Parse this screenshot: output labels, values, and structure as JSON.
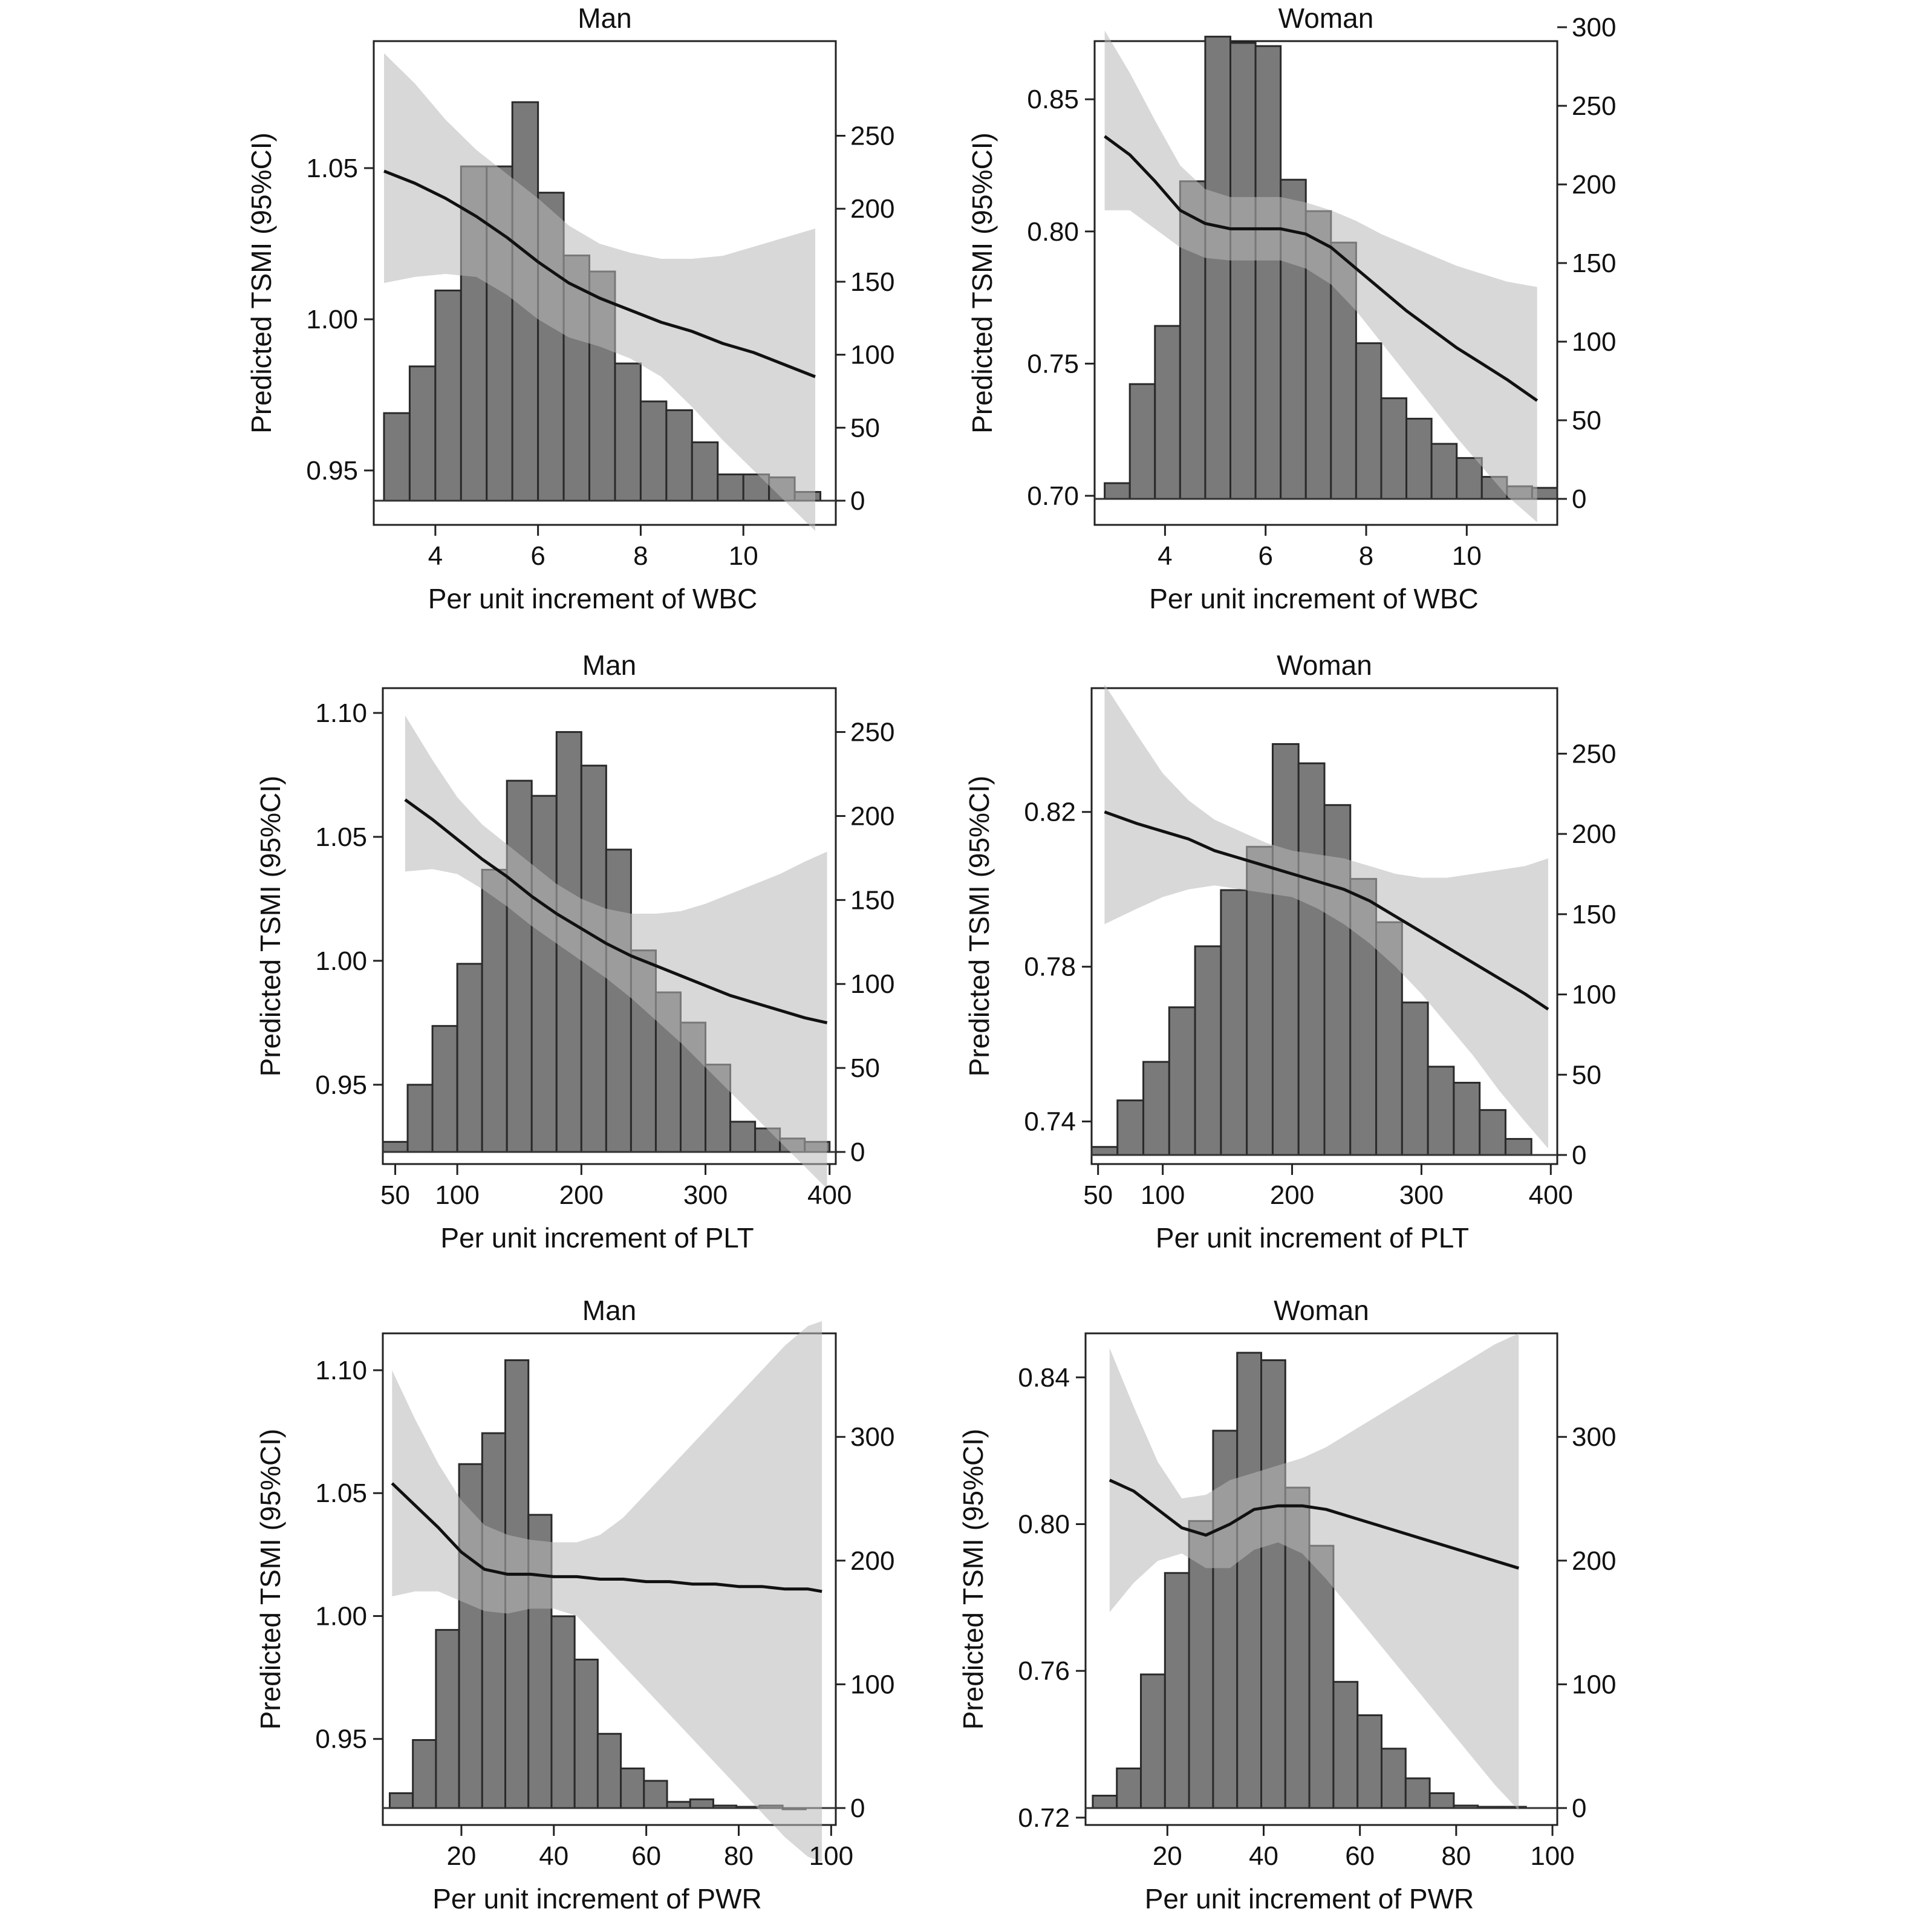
{
  "chart_data": [
    {
      "type": "line",
      "title": "Man",
      "xlabel": "Per unit increment of WBC",
      "ylabel": "Predicted TSMI (95%CI)",
      "xlim": [
        2.8,
        11.8
      ],
      "ylim": [
        0.932,
        1.092
      ],
      "y2lim": [
        0,
        285
      ],
      "xticks": [
        4,
        6,
        8,
        10
      ],
      "yticks": [
        0.95,
        1.0,
        1.05
      ],
      "y2ticks": [
        0,
        50,
        100,
        150,
        200,
        250
      ],
      "line": {
        "x": [
          3.0,
          3.6,
          4.2,
          4.8,
          5.4,
          6.0,
          6.6,
          7.2,
          7.8,
          8.4,
          9.0,
          9.6,
          10.2,
          10.8,
          11.4
        ],
        "y": [
          1.049,
          1.045,
          1.04,
          1.034,
          1.027,
          1.019,
          1.012,
          1.007,
          1.003,
          0.999,
          0.996,
          0.992,
          0.989,
          0.985,
          0.981
        ]
      },
      "ci_upper": [
        1.088,
        1.078,
        1.066,
        1.056,
        1.048,
        1.04,
        1.031,
        1.025,
        1.022,
        1.02,
        1.02,
        1.021,
        1.024,
        1.027,
        1.03
      ],
      "ci_lower": [
        1.012,
        1.014,
        1.015,
        1.014,
        1.008,
        1.0,
        0.994,
        0.991,
        0.987,
        0.981,
        0.971,
        0.96,
        0.95,
        0.94,
        0.93
      ],
      "histogram": {
        "bin_start": 3.0,
        "bin_width": 0.5,
        "counts": [
          60,
          92,
          144,
          229,
          229,
          273,
          211,
          168,
          157,
          94,
          68,
          62,
          40,
          18,
          18,
          16,
          6
        ]
      }
    },
    {
      "type": "line",
      "title": "Woman",
      "xlabel": "Per unit increment of WBC",
      "ylabel": "Predicted TSMI (95%CI)",
      "xlim": [
        2.6,
        11.8
      ],
      "ylim": [
        0.689,
        0.872
      ],
      "y2lim": [
        0,
        300
      ],
      "xticks": [
        4,
        6,
        8,
        10
      ],
      "yticks": [
        0.7,
        0.75,
        0.8,
        0.85
      ],
      "y2ticks": [
        0,
        50,
        100,
        150,
        200,
        250,
        300
      ],
      "line": {
        "x": [
          2.8,
          3.3,
          3.8,
          4.3,
          4.8,
          5.3,
          5.8,
          6.3,
          6.8,
          7.3,
          7.8,
          8.3,
          8.8,
          9.3,
          9.8,
          10.3,
          10.8,
          11.4
        ],
        "y": [
          0.836,
          0.829,
          0.819,
          0.808,
          0.803,
          0.801,
          0.801,
          0.801,
          0.799,
          0.794,
          0.786,
          0.778,
          0.77,
          0.763,
          0.756,
          0.75,
          0.744,
          0.736
        ]
      },
      "ci_upper": [
        0.876,
        0.86,
        0.842,
        0.825,
        0.816,
        0.813,
        0.813,
        0.813,
        0.811,
        0.808,
        0.804,
        0.799,
        0.795,
        0.791,
        0.787,
        0.784,
        0.781,
        0.779
      ],
      "ci_lower": [
        0.808,
        0.808,
        0.801,
        0.794,
        0.79,
        0.789,
        0.789,
        0.789,
        0.786,
        0.78,
        0.77,
        0.758,
        0.746,
        0.734,
        0.722,
        0.711,
        0.7,
        0.69
      ],
      "histogram": {
        "bin_start": 2.8,
        "bin_width": 0.5,
        "counts": [
          10,
          73,
          110,
          202,
          294,
          290,
          288,
          203,
          183,
          163,
          99,
          64,
          51,
          35,
          26,
          14,
          8,
          7
        ]
      }
    },
    {
      "type": "line",
      "title": "Man",
      "xlabel": "Per unit increment of PLT",
      "ylabel": "Predicted TSMI (95%CI)",
      "xlim": [
        40,
        405
      ],
      "ylim": [
        0.918,
        1.11
      ],
      "y2lim": [
        0,
        270
      ],
      "xticks": [
        50,
        100,
        200,
        300,
        400
      ],
      "yticks": [
        0.95,
        1.0,
        1.05,
        1.1
      ],
      "y2ticks": [
        0,
        50,
        100,
        150,
        200,
        250
      ],
      "line": {
        "x": [
          58,
          80,
          100,
          120,
          140,
          160,
          180,
          200,
          220,
          240,
          260,
          280,
          300,
          320,
          340,
          360,
          380,
          398
        ],
        "y": [
          1.065,
          1.057,
          1.049,
          1.041,
          1.034,
          1.026,
          1.019,
          1.013,
          1.007,
          1.002,
          0.998,
          0.994,
          0.99,
          0.986,
          0.983,
          0.98,
          0.977,
          0.975
        ]
      },
      "ci_upper": [
        1.099,
        1.081,
        1.066,
        1.055,
        1.047,
        1.039,
        1.031,
        1.025,
        1.021,
        1.019,
        1.019,
        1.02,
        1.023,
        1.027,
        1.031,
        1.035,
        1.04,
        1.044
      ],
      "ci_lower": [
        1.036,
        1.037,
        1.035,
        1.029,
        1.022,
        1.014,
        1.007,
        1.0,
        0.993,
        0.985,
        0.976,
        0.967,
        0.957,
        0.947,
        0.937,
        0.927,
        0.917,
        0.908
      ],
      "histogram": {
        "bin_start": 40,
        "bin_width": 20,
        "counts": [
          6,
          40,
          75,
          112,
          168,
          221,
          212,
          250,
          230,
          180,
          120,
          95,
          77,
          52,
          18,
          14,
          8,
          6
        ]
      }
    },
    {
      "type": "line",
      "title": "Woman",
      "xlabel": "Per unit increment of PLT",
      "ylabel": "Predicted TSMI (95%CI)",
      "xlim": [
        45,
        405
      ],
      "ylim": [
        0.729,
        0.852
      ],
      "y2lim": [
        0,
        275
      ],
      "xticks": [
        50,
        100,
        200,
        300,
        400
      ],
      "yticks": [
        0.74,
        0.78,
        0.82
      ],
      "y2ticks": [
        0,
        50,
        100,
        150,
        200,
        250
      ],
      "line": {
        "x": [
          55,
          80,
          100,
          120,
          140,
          160,
          180,
          200,
          220,
          240,
          260,
          280,
          300,
          320,
          340,
          360,
          380,
          398
        ],
        "y": [
          0.82,
          0.817,
          0.815,
          0.813,
          0.81,
          0.808,
          0.806,
          0.804,
          0.802,
          0.8,
          0.797,
          0.793,
          0.789,
          0.785,
          0.781,
          0.777,
          0.773,
          0.769
        ]
      },
      "ci_upper": [
        0.853,
        0.84,
        0.83,
        0.823,
        0.818,
        0.815,
        0.812,
        0.81,
        0.809,
        0.808,
        0.806,
        0.804,
        0.803,
        0.803,
        0.804,
        0.805,
        0.806,
        0.808
      ],
      "ci_lower": [
        0.791,
        0.795,
        0.798,
        0.8,
        0.801,
        0.8,
        0.799,
        0.798,
        0.795,
        0.791,
        0.786,
        0.78,
        0.773,
        0.765,
        0.757,
        0.748,
        0.74,
        0.733
      ],
      "histogram": {
        "bin_start": 45,
        "bin_width": 20,
        "counts": [
          5,
          34,
          58,
          92,
          130,
          165,
          192,
          256,
          244,
          218,
          172,
          145,
          95,
          55,
          45,
          28,
          10
        ]
      }
    },
    {
      "type": "line",
      "title": "Man",
      "xlabel": "Per unit increment of PWR",
      "ylabel": "Predicted TSMI (95%CI)",
      "xlim": [
        3,
        101
      ],
      "ylim": [
        0.915,
        1.115
      ],
      "y2lim": [
        0,
        370
      ],
      "xticks": [
        20,
        40,
        60,
        80,
        100
      ],
      "yticks": [
        0.95,
        1.0,
        1.05,
        1.1
      ],
      "y2ticks": [
        0,
        100,
        200,
        300
      ],
      "line": {
        "x": [
          5,
          10,
          15,
          20,
          25,
          30,
          35,
          40,
          45,
          50,
          55,
          60,
          65,
          70,
          75,
          80,
          85,
          90,
          95,
          98
        ],
        "y": [
          1.054,
          1.045,
          1.036,
          1.026,
          1.019,
          1.017,
          1.017,
          1.016,
          1.016,
          1.015,
          1.015,
          1.014,
          1.014,
          1.013,
          1.013,
          1.012,
          1.012,
          1.011,
          1.011,
          1.01
        ]
      },
      "ci_upper": [
        1.1,
        1.08,
        1.062,
        1.047,
        1.037,
        1.033,
        1.031,
        1.03,
        1.03,
        1.033,
        1.04,
        1.05,
        1.06,
        1.07,
        1.08,
        1.09,
        1.1,
        1.11,
        1.118,
        1.12
      ],
      "ci_lower": [
        1.008,
        1.01,
        1.01,
        1.006,
        1.002,
        1.001,
        1.003,
        1.003,
        1.0,
        0.99,
        0.98,
        0.97,
        0.96,
        0.95,
        0.94,
        0.93,
        0.92,
        0.91,
        0.902,
        0.9
      ],
      "histogram": {
        "bin_start": 4.5,
        "bin_width": 5,
        "counts": [
          12,
          55,
          144,
          278,
          303,
          362,
          237,
          155,
          120,
          60,
          32,
          22,
          5,
          7,
          2,
          1,
          2,
          0
        ]
      }
    },
    {
      "type": "line",
      "title": "Woman",
      "xlabel": "Per unit increment of PWR",
      "ylabel": "Predicted TSMI (95%CI)",
      "xlim": [
        3,
        101
      ],
      "ylim": [
        0.718,
        0.852
      ],
      "y2lim": [
        0,
        370
      ],
      "xticks": [
        20,
        40,
        60,
        80,
        100
      ],
      "yticks": [
        0.72,
        0.76,
        0.8,
        0.84
      ],
      "y2ticks": [
        0,
        100,
        200,
        300
      ],
      "line": {
        "x": [
          8,
          13,
          18,
          23,
          28,
          33,
          38,
          43,
          48,
          53,
          58,
          63,
          68,
          73,
          78,
          83,
          88,
          93
        ],
        "y": [
          0.812,
          0.809,
          0.804,
          0.799,
          0.797,
          0.8,
          0.804,
          0.805,
          0.805,
          0.804,
          0.802,
          0.8,
          0.798,
          0.796,
          0.794,
          0.792,
          0.79,
          0.788
        ]
      },
      "ci_upper": [
        0.848,
        0.832,
        0.817,
        0.807,
        0.808,
        0.812,
        0.814,
        0.816,
        0.818,
        0.821,
        0.825,
        0.829,
        0.833,
        0.837,
        0.841,
        0.845,
        0.849,
        0.852
      ],
      "ci_lower": [
        0.776,
        0.784,
        0.79,
        0.792,
        0.788,
        0.788,
        0.793,
        0.795,
        0.792,
        0.785,
        0.777,
        0.769,
        0.761,
        0.753,
        0.745,
        0.737,
        0.729,
        0.722
      ],
      "histogram": {
        "bin_start": 4.5,
        "bin_width": 5,
        "counts": [
          10,
          32,
          108,
          190,
          232,
          305,
          368,
          362,
          259,
          212,
          102,
          75,
          48,
          24,
          12,
          2,
          1,
          1
        ]
      }
    }
  ]
}
